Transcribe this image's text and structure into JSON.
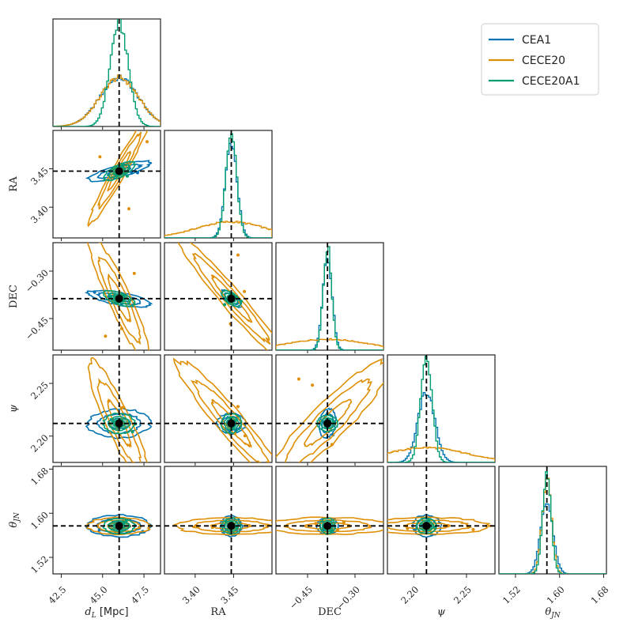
{
  "chart_data": {
    "type": "corner",
    "parameters": [
      {
        "key": "dL",
        "label": "d_L [Mpc]",
        "axis_label_prefix": "d",
        "axis_label_sub": "L",
        "axis_label_suffix": " [Mpc]",
        "range": [
          42.0,
          48.5
        ],
        "truth": 46.0,
        "ticks": [
          "42.5",
          "45.0",
          "47.5"
        ],
        "tick_values": [
          42.5,
          45.0,
          47.5
        ]
      },
      {
        "key": "RA",
        "label": "RA",
        "range": [
          3.36,
          3.5
        ],
        "truth": 3.447,
        "ticks": [
          "3.40",
          "3.45"
        ],
        "tick_values": [
          3.4,
          3.45
        ]
      },
      {
        "key": "DEC",
        "label": "DEC",
        "range": [
          -0.55,
          -0.21
        ],
        "truth": -0.387,
        "ticks": [
          "−0.45",
          "−0.30"
        ],
        "tick_values": [
          -0.45,
          -0.3
        ]
      },
      {
        "key": "psi",
        "label": "ψ",
        "range": [
          2.175,
          2.277
        ],
        "truth": 2.212,
        "ticks": [
          "2.20",
          "2.25"
        ],
        "tick_values": [
          2.2,
          2.25
        ]
      },
      {
        "key": "thetaJN",
        "label": "θ_JN",
        "axis_label_prefix": "θ",
        "axis_label_sub": "JN",
        "axis_label_suffix": "",
        "range": [
          1.49,
          1.685
        ],
        "truth": 1.577,
        "ticks": [
          "1.52",
          "1.60",
          "1.68"
        ],
        "tick_values": [
          1.52,
          1.6,
          1.68
        ]
      }
    ],
    "series": [
      {
        "name": "CEA1",
        "color": "#0173b2",
        "widths": [
          0.45,
          0.09,
          0.06,
          0.16,
          0.1
        ],
        "corr": {
          "dL-RA": 0.8,
          "dL-DEC": -0.65,
          "RA-DEC": -0.75,
          "dL-psi": 0.05,
          "RA-psi": 0.0,
          "DEC-psi": 0.2
        }
      },
      {
        "name": "CECE20",
        "color": "#de8f05",
        "widths": [
          0.45,
          0.85,
          1.0,
          1.0,
          0.06
        ],
        "corr": {
          "dL-RA": 0.97,
          "dL-DEC": -0.92,
          "RA-DEC": -0.97,
          "dL-psi": -0.9,
          "RA-psi": -0.95,
          "DEC-psi": 0.92
        }
      },
      {
        "name": "CECE20A1",
        "color": "#029e73",
        "widths": [
          0.18,
          0.08,
          0.05,
          0.09,
          0.05
        ],
        "corr": {
          "dL-RA": 0.7,
          "dL-DEC": -0.6,
          "RA-DEC": -0.6,
          "dL-psi": 0.0,
          "RA-psi": 0.0,
          "DEC-psi": 0.0
        }
      }
    ],
    "legend": {
      "position": "top-right",
      "entries": [
        "CEA1",
        "CECE20",
        "CECE20A1"
      ]
    },
    "truth_color": "#000000"
  }
}
